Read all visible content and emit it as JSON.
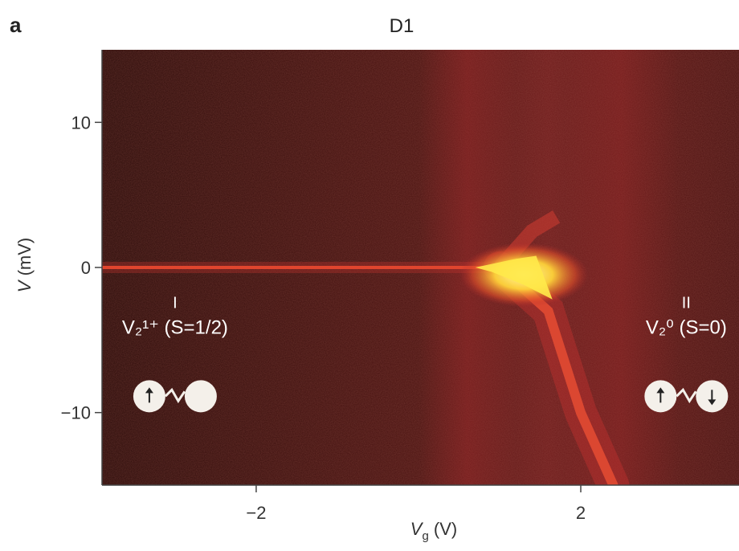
{
  "panel_label": "a",
  "colors": {
    "background": "#2a0a08",
    "map_low": "#3a0f0c",
    "map_mid": "#a3242a",
    "map_high": "#ffff66",
    "axis": "#333333"
  },
  "chart_data": {
    "type": "heatmap",
    "title": "D1",
    "xlabel": "V_g (V)",
    "ylabel": "V (mV)",
    "xlim": [
      -3.9,
      3.95
    ],
    "ylim": [
      -15,
      15
    ],
    "x_ticks": [
      {
        "value": -2,
        "label": "−2"
      },
      {
        "value": 2,
        "label": "2"
      }
    ],
    "y_ticks": [
      {
        "value": 10,
        "label": "10"
      },
      {
        "value": 0,
        "label": "0"
      },
      {
        "value": -10,
        "label": "−10"
      }
    ],
    "colorscale": [
      "#3a0f0c",
      "#7a1a1c",
      "#b02a2c",
      "#ff6a2a",
      "#ffff66"
    ],
    "features": [
      {
        "name": "zero-bias line",
        "points": [
          [
            -3.9,
            0
          ],
          [
            1.0,
            0
          ]
        ]
      },
      {
        "name": "Kondo peak",
        "points": [
          [
            1.0,
            0
          ],
          [
            1.3,
            -0.5
          ],
          [
            1.6,
            -1.8
          ]
        ]
      },
      {
        "name": "excitation branch",
        "points": [
          [
            1.0,
            0
          ],
          [
            1.6,
            -3
          ],
          [
            2.0,
            -10
          ],
          [
            2.4,
            -15
          ]
        ]
      }
    ],
    "annotations": [
      {
        "region": "I",
        "state": "V₂¹⁺ (S=1/2)",
        "x": -3.0,
        "y": -5
      },
      {
        "region": "II",
        "state": "V₂⁰ (S=0)",
        "x": 3.3,
        "y": -5
      }
    ]
  }
}
